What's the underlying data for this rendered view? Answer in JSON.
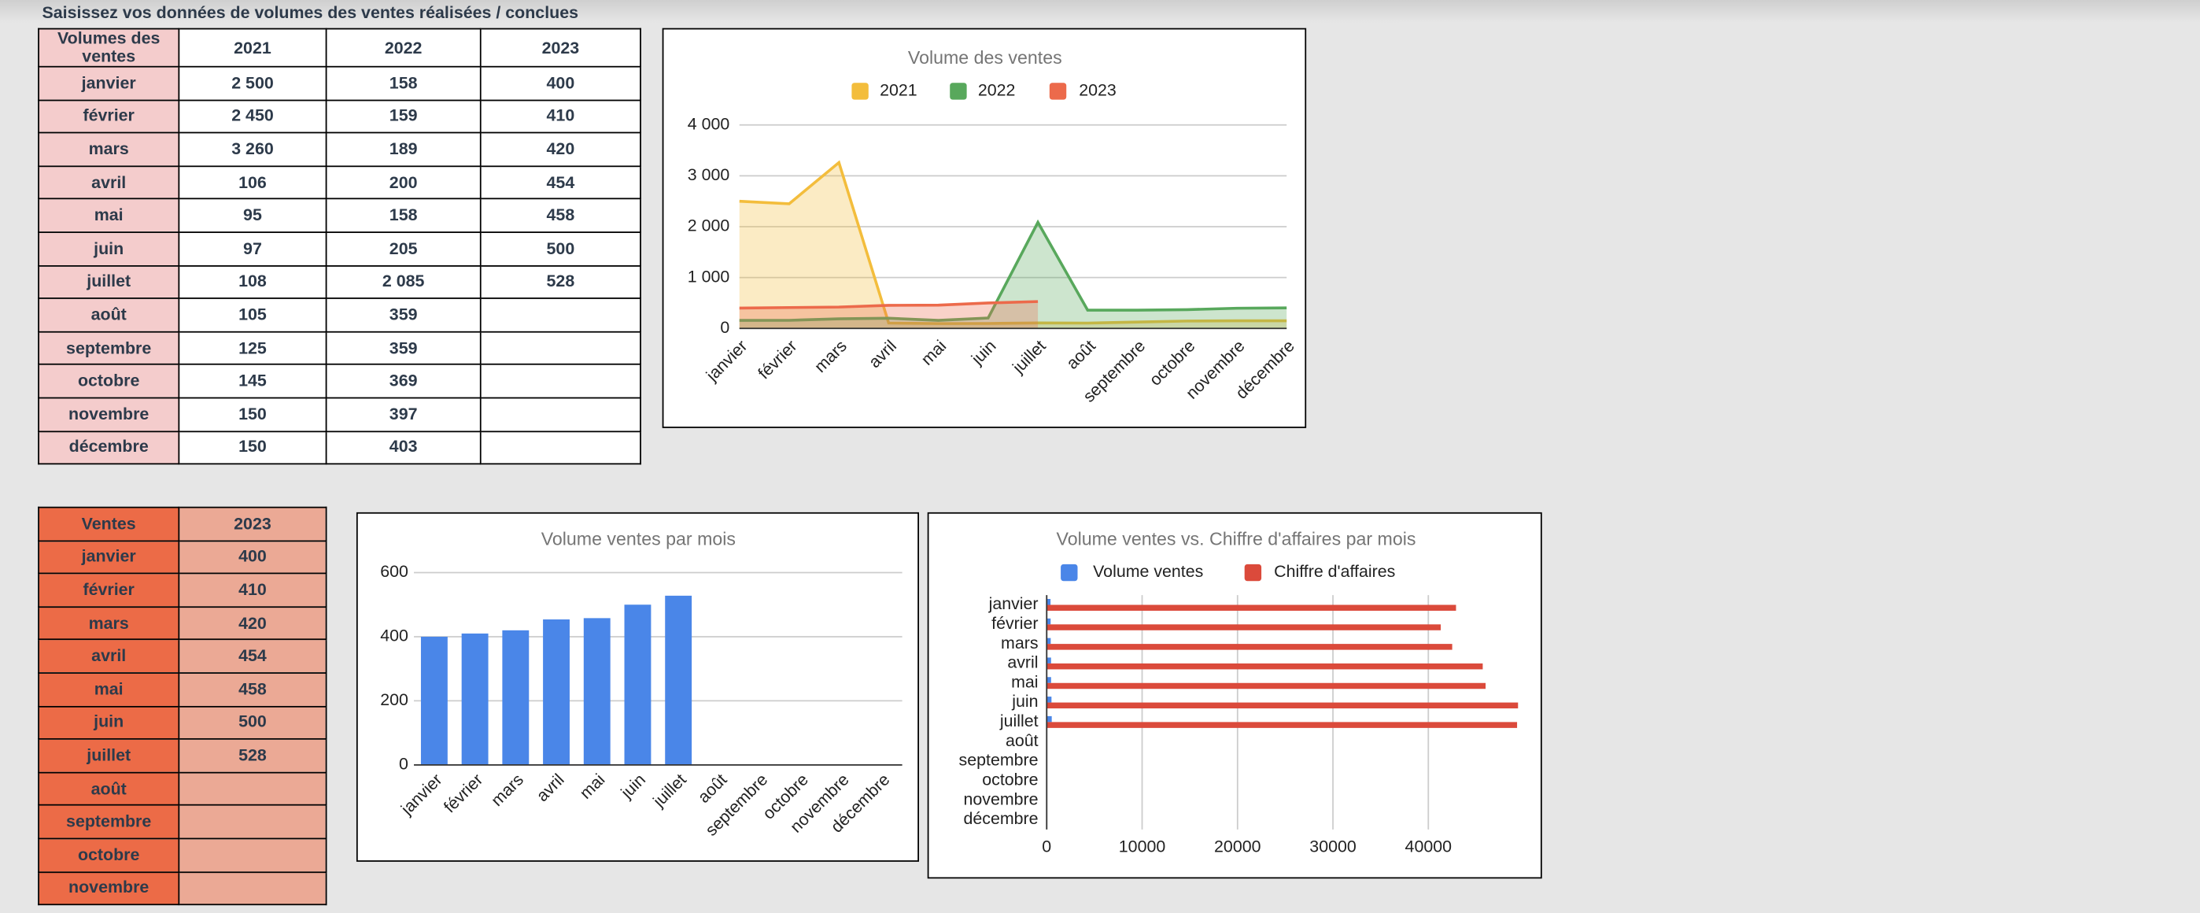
{
  "header": {
    "title": "Saisissez vos données de volumes des ventes réalisées / conclues"
  },
  "table1": {
    "header": [
      "Volumes des ventes",
      "2021",
      "2022",
      "2023"
    ],
    "rows": [
      [
        "janvier",
        "2 500",
        "158",
        "400"
      ],
      [
        "février",
        "2 450",
        "159",
        "410"
      ],
      [
        "mars",
        "3 260",
        "189",
        "420"
      ],
      [
        "avril",
        "106",
        "200",
        "454"
      ],
      [
        "mai",
        "95",
        "158",
        "458"
      ],
      [
        "juin",
        "97",
        "205",
        "500"
      ],
      [
        "juillet",
        "108",
        "2 085",
        "528"
      ],
      [
        "août",
        "105",
        "359"
      ],
      [
        "septembre",
        "125",
        "359"
      ],
      [
        "octobre",
        "145",
        "369"
      ],
      [
        "novembre",
        "150",
        "397"
      ],
      [
        "décembre",
        "150",
        "403"
      ]
    ]
  },
  "table2": {
    "header": [
      "Ventes",
      "2023"
    ],
    "rows": [
      [
        "janvier",
        "400"
      ],
      [
        "février",
        "410"
      ],
      [
        "mars",
        "420"
      ],
      [
        "avril",
        "454"
      ],
      [
        "mai",
        "458"
      ],
      [
        "juin",
        "500"
      ],
      [
        "juillet",
        "528"
      ],
      [
        "août"
      ],
      [
        "septembre"
      ],
      [
        "octobre"
      ],
      [
        "novembre"
      ]
    ]
  },
  "chart_data": [
    {
      "type": "area",
      "title": "Volume des ventes",
      "legend": "top",
      "grid": true,
      "categories": [
        "janvier",
        "février",
        "mars",
        "avril",
        "mai",
        "juin",
        "juillet",
        "août",
        "septembre",
        "octobre",
        "novembre",
        "décembre"
      ],
      "series": [
        {
          "name": "2021",
          "color": "#f3bd3c",
          "values": [
            2500,
            2450,
            3260,
            106,
            95,
            97,
            108,
            105,
            125,
            145,
            150,
            150
          ]
        },
        {
          "name": "2022",
          "color": "#58a85c",
          "values": [
            158,
            159,
            189,
            200,
            158,
            205,
            2085,
            359,
            359,
            369,
            397,
            403
          ]
        },
        {
          "name": "2023",
          "color": "#ec6a4b",
          "values": [
            400,
            410,
            420,
            454,
            458,
            500,
            528,
            null,
            null,
            null,
            null,
            null
          ]
        }
      ],
      "ylim": [
        0,
        4000
      ],
      "yticks": [
        0,
        {
          "value": 1000,
          "label": "1 000"
        },
        {
          "value": 2000,
          "label": "2 000"
        },
        {
          "value": 3000,
          "label": "3 000"
        },
        {
          "value": 4000,
          "label": "4 000"
        }
      ]
    },
    {
      "type": "bar",
      "title": "Volume ventes par mois",
      "grid": true,
      "color": "#4a86e8",
      "categories": [
        "janvier",
        "février",
        "mars",
        "avril",
        "mai",
        "juin",
        "juillet",
        "août",
        "septembre",
        "octobre",
        "novembre",
        "décembre"
      ],
      "values": [
        400,
        410,
        420,
        454,
        458,
        500,
        528,
        null,
        null,
        null,
        null,
        null
      ],
      "ylim": [
        0,
        600
      ],
      "yticks": [
        0,
        200,
        400,
        600
      ]
    },
    {
      "type": "hbar",
      "title": "Volume ventes  vs. Chiffre d'affaires par mois",
      "legend": "top",
      "grid": true,
      "categories": [
        "janvier",
        "février",
        "mars",
        "avril",
        "mai",
        "juin",
        "juillet",
        "août",
        "septembre",
        "octobre",
        "novembre",
        "décembre"
      ],
      "series": [
        {
          "name": "Volume ventes",
          "color": "#4a86e8",
          "values": [
            400,
            410,
            420,
            454,
            458,
            500,
            528,
            null,
            null,
            null,
            null,
            null
          ]
        },
        {
          "name": "Chiffre d'affaires",
          "color": "#db4a3b",
          "values": [
            42900,
            41300,
            42500,
            45700,
            46000,
            49400,
            49300,
            null,
            null,
            null,
            null,
            null
          ]
        }
      ],
      "xlim": [
        0,
        50000
      ],
      "xticks": [
        0,
        10000,
        20000,
        30000,
        40000
      ]
    }
  ]
}
